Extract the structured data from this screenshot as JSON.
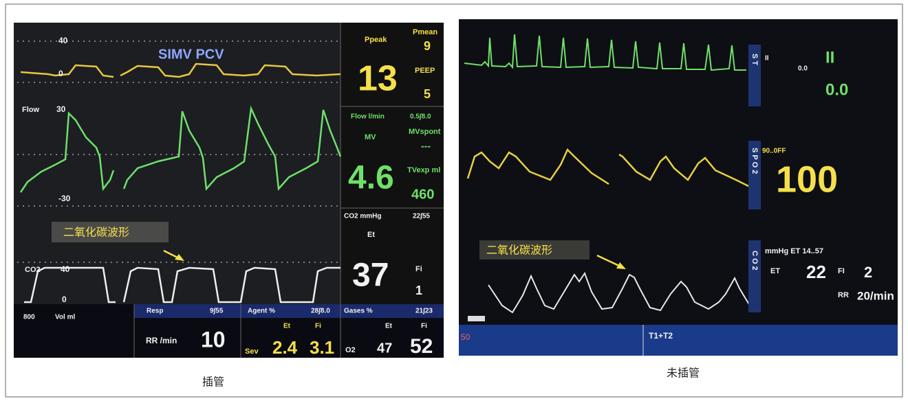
{
  "left": {
    "caption": "插管",
    "annotation": "二氧化碳波形",
    "mode": "SIMV PCV",
    "pressure_axis": [
      "40",
      "0"
    ],
    "flow_label": "Flow",
    "flow_axis": [
      "30",
      "-30"
    ],
    "co2_label": "CO2",
    "co2_axis": [
      "40",
      "0"
    ],
    "ppeak_label": "Ppeak",
    "ppeak": "13",
    "pmean_label": "Pmean",
    "pmean": "9",
    "peep_label": "PEEP",
    "peep": "5",
    "flow_unit": "Flow l/min",
    "flow_range": "0.5∫8.0",
    "mv_label": "MV",
    "mv": "4.6",
    "mvspont_label": "MVspont",
    "mvspont": "---",
    "tvexp_label": "TVexp ml",
    "tvexp": "460",
    "co2_unit": "CO2 mmHg",
    "co2_range": "22∫55",
    "et_label": "Et",
    "et": "37",
    "fi_label": "Fi",
    "fi": "1",
    "vol_scale": "800",
    "vol_label": "Vol ml",
    "resp_label": "Resp",
    "resp_range": "9∫55",
    "rr_label": "RR /min",
    "rr": "10",
    "agent_label": "Agent %",
    "agent_range": "28∫8.0",
    "agent_et_label": "Et",
    "agent_fi_label": "Fi",
    "agent_name": "Sev",
    "agent_et": "2.4",
    "agent_fi": "3.1",
    "gases_label": "Gases %",
    "gases_range": "21∫23",
    "gases_et_label": "Et",
    "gases_fi_label": "Fi",
    "gas_name": "O2",
    "gas_et": "47",
    "gas_fi": "52"
  },
  "right": {
    "caption": "未插管",
    "annotation": "二氧化碳波形",
    "ecg_label": "ST",
    "ecg_lead_small": "II",
    "ecg_value_small": "0.0",
    "ecg_lead": "II",
    "ecg_value": "0.0",
    "spo2_label": "SPO2",
    "spo2_alarm": "90..0FF",
    "spo2": "100",
    "co2_label": "CO2",
    "co2_header": "mmHg ET 14..57",
    "et_label": "ET",
    "et": "22",
    "fi_label": "FI",
    "fi": "2",
    "rr_label": "RR",
    "rr": "20/min",
    "bottom_left": "50",
    "bottom_right": "T1+T2"
  }
}
